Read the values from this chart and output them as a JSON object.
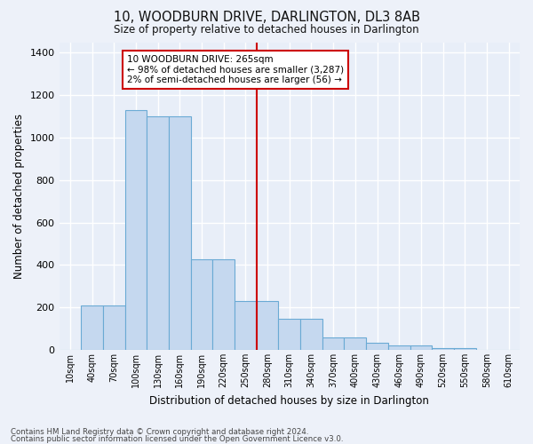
{
  "title": "10, WOODBURN DRIVE, DARLINGTON, DL3 8AB",
  "subtitle": "Size of property relative to detached houses in Darlington",
  "xlabel": "Distribution of detached houses by size in Darlington",
  "ylabel": "Number of detached properties",
  "bar_color": "#c5d8ef",
  "bar_edge_color": "#6aaad4",
  "background_color": "#e8eef8",
  "grid_color": "#ffffff",
  "fig_background": "#edf1f9",
  "bin_labels": [
    "10sqm",
    "40sqm",
    "70sqm",
    "100sqm",
    "130sqm",
    "160sqm",
    "190sqm",
    "220sqm",
    "250sqm",
    "280sqm",
    "310sqm",
    "340sqm",
    "370sqm",
    "400sqm",
    "430sqm",
    "460sqm",
    "490sqm",
    "520sqm",
    "550sqm",
    "580sqm",
    "610sqm"
  ],
  "bar_values": [
    0,
    210,
    210,
    1130,
    1100,
    1100,
    425,
    425,
    230,
    230,
    145,
    145,
    58,
    58,
    35,
    20,
    20,
    10,
    10,
    0,
    0
  ],
  "vline_x_index": 8.5,
  "vline_color": "#cc0000",
  "annotation_text": "10 WOODBURN DRIVE: 265sqm\n← 98% of detached houses are smaller (3,287)\n2% of semi-detached houses are larger (56) →",
  "annotation_box_color": "#ffffff",
  "annotation_box_edge": "#cc0000",
  "footnote1": "Contains HM Land Registry data © Crown copyright and database right 2024.",
  "footnote2": "Contains public sector information licensed under the Open Government Licence v3.0.",
  "ylim": [
    0,
    1450
  ],
  "yticks": [
    0,
    200,
    400,
    600,
    800,
    1000,
    1200,
    1400
  ]
}
